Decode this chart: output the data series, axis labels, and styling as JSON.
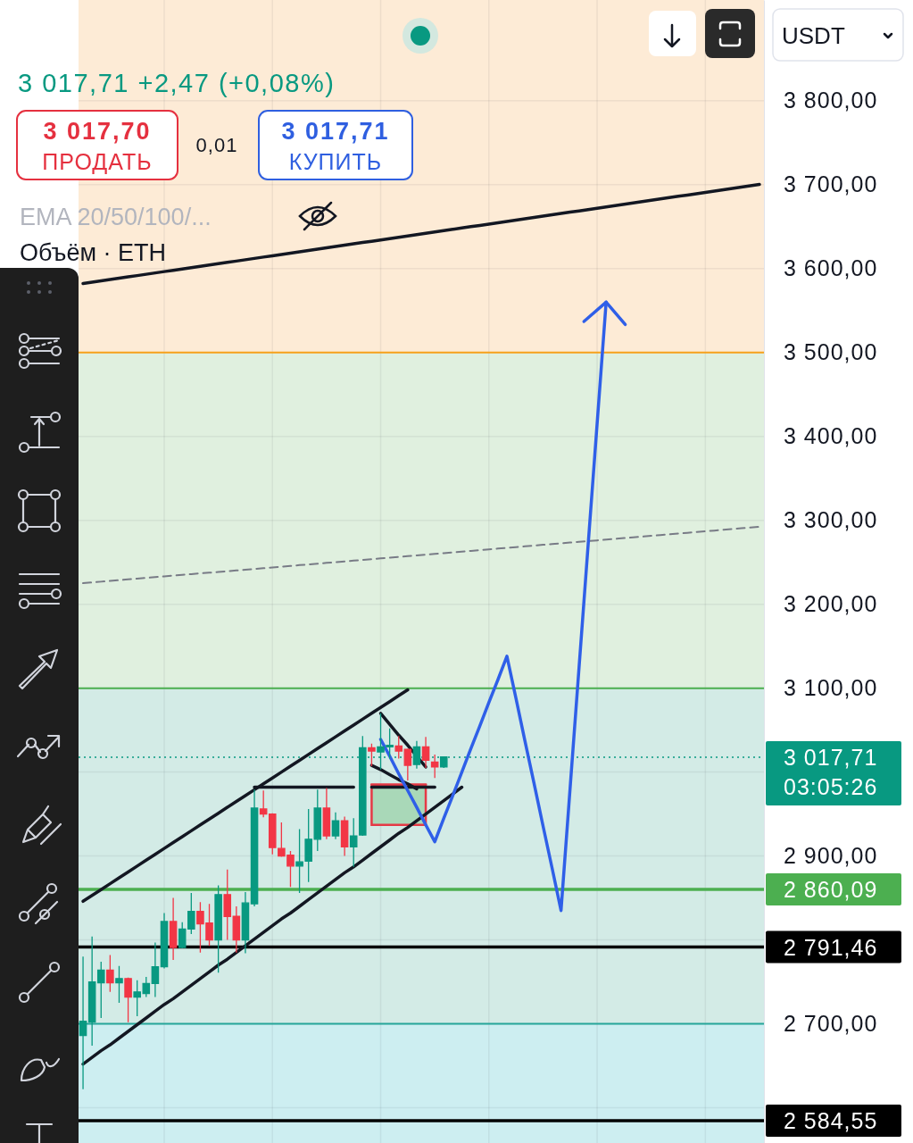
{
  "chart_data": {
    "type": "candlestick",
    "subtitle": "3 017,71 +2,47 (+0,08%)",
    "ylabel": "USDT",
    "annotations": [
      "3 017,70",
      "ПРОДАТЬ",
      "0,01",
      "3 017,71",
      "КУПИТЬ",
      "EMA 20/50/100/...",
      "Объём · ETH"
    ],
    "categories": [
      null,
      null,
      null,
      null,
      null,
      null,
      null,
      null,
      null,
      null,
      null,
      null,
      null,
      null,
      null,
      null,
      null,
      null,
      null,
      null,
      null,
      null,
      null,
      null,
      null,
      null,
      null,
      null,
      null,
      null,
      null,
      null,
      null,
      null,
      null,
      null,
      null,
      null,
      null,
      null,
      null,
      null,
      null,
      null,
      null,
      null,
      null,
      null,
      null,
      null,
      null,
      null,
      null,
      null,
      null,
      null,
      null,
      null,
      null,
      null,
      null,
      null,
      null,
      null,
      null,
      null,
      null,
      null,
      null,
      null,
      null,
      null,
      null,
      null,
      null,
      null
    ],
    "ohlc": [
      [
        2686,
        2780,
        2622,
        2703
      ],
      [
        2702,
        2804,
        2674,
        2750
      ],
      [
        2749,
        2774,
        2707,
        2764
      ],
      [
        2764,
        2782,
        2738,
        2749
      ],
      [
        2749,
        2769,
        2725,
        2754
      ],
      [
        2754,
        2755,
        2702,
        2732
      ],
      [
        2732,
        2752,
        2709,
        2738
      ],
      [
        2736,
        2756,
        2732,
        2748
      ],
      [
        2748,
        2797,
        2732,
        2768
      ],
      [
        2768,
        2832,
        2766,
        2822
      ],
      [
        2822,
        2850,
        2776,
        2791
      ],
      [
        2791,
        2821,
        2790,
        2813
      ],
      [
        2813,
        2856,
        2807,
        2834
      ],
      [
        2834,
        2845,
        2785,
        2819
      ],
      [
        2820,
        2843,
        2793,
        2800
      ],
      [
        2800,
        2865,
        2761,
        2854
      ],
      [
        2854,
        2884,
        2800,
        2828
      ],
      [
        2828,
        2840,
        2785,
        2800
      ],
      [
        2800,
        2857,
        2784,
        2844
      ],
      [
        2843,
        2979,
        2840,
        2957
      ],
      [
        2956,
        2978,
        2946,
        2950
      ],
      [
        2950,
        2951,
        2902,
        2910
      ],
      [
        2909,
        2940,
        2899,
        2900
      ],
      [
        2901,
        2906,
        2863,
        2888
      ],
      [
        2888,
        2932,
        2856,
        2893
      ],
      [
        2894,
        2956,
        2869,
        2920
      ],
      [
        2920,
        2979,
        2906,
        2957
      ],
      [
        2957,
        2981,
        2920,
        2924
      ],
      [
        2924,
        2952,
        2920,
        2942
      ],
      [
        2942,
        2947,
        2900,
        2911
      ],
      [
        2911,
        2945,
        2887,
        2924
      ],
      [
        2925,
        3043,
        2924,
        3029
      ],
      [
        3029,
        3034,
        3007,
        3025
      ],
      [
        3024,
        3070,
        3003,
        3030
      ],
      [
        3030,
        3052,
        3016,
        3032
      ],
      [
        3031,
        3043,
        3016,
        3025
      ],
      [
        3027,
        3028,
        2990,
        3008
      ],
      [
        3009,
        3037,
        3004,
        3030
      ],
      [
        3030,
        3042,
        3005,
        3014
      ],
      [
        3012,
        3021,
        2993,
        3006
      ],
      [
        3006,
        3018,
        3005,
        3018
      ],
      null,
      null,
      null,
      null,
      null,
      null,
      null,
      null,
      null,
      null,
      null,
      null,
      null,
      null,
      null,
      null,
      null,
      null,
      null,
      null,
      null,
      null,
      null,
      null,
      null,
      null,
      null,
      null,
      null,
      null,
      null,
      null,
      null,
      null,
      null
    ],
    "colors": [
      "#089981",
      "#089981",
      "#089981",
      "#f23645",
      "#089981",
      "#f23645",
      "#089981",
      "#089981",
      "#089981",
      "#089981",
      "#f23645",
      "#089981",
      "#089981",
      "#f23645",
      "#f23645",
      "#089981",
      "#f23645",
      "#f23645",
      "#089981",
      "#089981",
      "#f23645",
      "#f23645",
      "#f23645",
      "#f23645",
      "#089981",
      "#089981",
      "#089981",
      "#f23645",
      "#089981",
      "#f23645",
      "#089981",
      "#089981",
      "#f23645",
      "#089981",
      "#089981",
      "#f23645",
      "#f23645",
      "#089981",
      "#f23645",
      "#f23645",
      "#089981",
      null,
      null,
      null,
      null,
      null,
      null,
      null,
      null,
      null,
      null,
      null,
      null,
      null,
      null,
      null,
      null,
      null,
      null,
      null,
      null,
      null,
      null,
      null,
      null,
      null,
      null,
      null,
      null,
      null,
      null,
      null,
      null,
      null,
      null,
      null
    ],
    "series": [
      {
        "type": "line",
        "color": "#e53945",
        "values": [
          null,
          null,
          null,
          null,
          null,
          null,
          null,
          null,
          null,
          null,
          null,
          null,
          null,
          null,
          null,
          null,
          null,
          null,
          null,
          null,
          null,
          null,
          null,
          null,
          null,
          null,
          null,
          null,
          null,
          null,
          null,
          null,
          2985,
          2985,
          2985,
          2985,
          2985,
          2985,
          2985,
          null,
          null,
          null,
          null,
          null,
          null,
          null,
          null,
          null,
          null,
          null,
          null,
          null,
          null,
          null,
          null,
          null,
          null,
          null,
          null,
          null,
          null,
          null,
          null,
          null,
          null,
          null,
          null,
          null,
          null,
          null,
          null,
          null,
          null,
          null,
          null,
          null
        ],
        "upper": [
          null,
          null,
          null,
          null,
          null,
          null,
          null,
          null,
          null,
          null,
          null,
          null,
          null,
          null,
          null,
          null,
          null,
          null,
          null,
          null,
          null,
          null,
          null,
          null,
          null,
          null,
          null,
          null,
          null,
          null,
          null,
          null,
          2985,
          2985,
          2985,
          2985,
          2985,
          2985,
          2985,
          null,
          null,
          null,
          null,
          null,
          null,
          null,
          null,
          null,
          null,
          null,
          null,
          null,
          null,
          null,
          null,
          null,
          null,
          null,
          null,
          null,
          null,
          null,
          null,
          null,
          null,
          null,
          null,
          null,
          null,
          null,
          null,
          null,
          null,
          null,
          null,
          null
        ],
        "lower": [
          null,
          null,
          null,
          null,
          null,
          null,
          null,
          null,
          null,
          null,
          null,
          null,
          null,
          null,
          null,
          null,
          null,
          null,
          null,
          null,
          null,
          null,
          null,
          null,
          null,
          null,
          null,
          null,
          null,
          null,
          null,
          null,
          2937,
          2937,
          2937,
          2937,
          2937,
          2937,
          2937,
          null,
          null,
          null,
          null,
          null,
          null,
          null,
          null,
          null,
          null,
          null,
          null,
          null,
          null,
          null,
          null,
          null,
          null,
          null,
          null,
          null,
          null,
          null,
          null,
          null,
          null,
          null,
          null,
          null,
          null,
          null,
          null,
          null,
          null,
          null,
          null,
          null
        ],
        "colors": [
          null,
          null,
          null,
          null,
          null,
          null,
          null,
          null,
          null,
          null,
          null,
          null,
          null,
          null,
          null,
          null,
          null,
          null,
          null,
          null,
          null,
          null,
          null,
          null,
          null,
          null,
          null,
          null,
          null,
          null,
          null,
          null,
          "#a9d8b8",
          "#a9d8b8",
          "#a9d8b8",
          "#a9d8b8",
          "#a9d8b8",
          "#a9d8b8",
          "#a9d8b8",
          null,
          null,
          null,
          null,
          null,
          null,
          null,
          null,
          null,
          null,
          null,
          null,
          null,
          null,
          null,
          null,
          null,
          null,
          null,
          null,
          null,
          null,
          null,
          null,
          null,
          null,
          null,
          null,
          null,
          null,
          null,
          null,
          null,
          null,
          null,
          null,
          null
        ]
      },
      {
        "type": "line",
        "color": "#131722",
        "values": [
          3582.2,
          3583.8,
          3585.3,
          3586.9,
          3588.5,
          3590.1,
          3591.6,
          3593.2,
          3594.8,
          3596.4,
          3597.9,
          3599.5,
          3601.1,
          3602.7,
          3604.2,
          3605.8,
          3607.4,
          3608.9,
          3610.5,
          3612.1,
          3613.7,
          3615.2,
          3616.8,
          3618.4,
          3620.0,
          3621.5,
          3623.1,
          3624.7,
          3626.3,
          3627.8,
          3629.4,
          3631.0,
          3632.5,
          3634.1,
          3635.7,
          3637.3,
          3638.8,
          3640.4,
          3642.0,
          3643.6,
          3645.1,
          3646.7,
          3648.3,
          3649.9,
          3651.4,
          3653.0,
          3654.6,
          3656.2,
          3657.7,
          3659.3,
          3660.9,
          3662.4,
          3664.0,
          3665.6,
          3667.2,
          3668.7,
          3670.3,
          3671.9,
          3673.5,
          3675.0,
          3676.6,
          3678.2,
          3679.8,
          3681.3,
          3682.9,
          3684.5,
          3686.1,
          3687.6,
          3689.2,
          3690.8,
          3692.3,
          3693.9,
          3695.5,
          3697.1,
          3698.6,
          3700.2
        ]
      },
      {
        "type": "line",
        "color": "#787b86",
        "line_style": "dashed",
        "values": [
          3225.1,
          3226.0,
          3226.9,
          3227.8,
          3228.7,
          3229.6,
          3230.5,
          3231.4,
          3232.3,
          3233.2,
          3234.1,
          3235.0,
          3235.9,
          3236.8,
          3237.6,
          3238.5,
          3239.4,
          3240.3,
          3241.2,
          3242.1,
          3243.0,
          3243.9,
          3244.8,
          3245.7,
          3246.6,
          3247.5,
          3248.4,
          3249.3,
          3250.2,
          3251.1,
          3252.0,
          3252.9,
          3253.8,
          3254.7,
          3255.5,
          3256.4,
          3257.3,
          3258.2,
          3259.1,
          3260.0,
          3260.9,
          3261.8,
          3262.7,
          3263.6,
          3264.5,
          3265.4,
          3266.3,
          3267.2,
          3268.1,
          3269.0,
          3269.9,
          3270.8,
          3271.7,
          3272.6,
          3273.5,
          3274.3,
          3275.2,
          3276.1,
          3277.0,
          3277.9,
          3278.8,
          3279.7,
          3280.6,
          3281.5,
          3282.4,
          3283.3,
          3284.2,
          3285.1,
          3286.0,
          3286.9,
          3287.8,
          3288.7,
          3289.6,
          3290.5,
          3291.4,
          3292.2
        ]
      },
      {
        "type": "line",
        "color": "#131722",
        "values": [
          2846,
          2853,
          2860,
          2867,
          2874,
          2881,
          2888,
          2895,
          2902,
          2909,
          2916,
          2923,
          2930,
          2937,
          2944,
          2951,
          2958,
          2965,
          2972,
          2979,
          2986,
          2993,
          3000,
          3007,
          3014,
          3021,
          3028,
          3035,
          3042,
          3049,
          3056,
          3063,
          3070,
          3077,
          3084,
          3091,
          3098,
          null,
          null,
          null,
          null,
          null,
          null,
          null,
          null,
          null,
          null,
          null,
          null,
          null,
          null,
          null,
          null,
          null,
          null,
          null,
          null,
          null,
          null,
          null,
          null,
          null,
          null,
          null,
          null,
          null,
          null,
          null,
          null,
          null,
          null,
          null,
          null,
          null,
          null,
          null
        ]
      },
      {
        "type": "line",
        "color": "#131722",
        "values": [
          2652,
          2660,
          2668,
          2675,
          2683,
          2691,
          2699,
          2707,
          2715,
          2723,
          2730,
          2738,
          2746,
          2754,
          2762,
          2770,
          2777,
          2785,
          2793,
          2801,
          2809,
          2817,
          2825,
          2832,
          2840,
          2848,
          2856,
          2864,
          2872,
          2880,
          2887,
          2895,
          2903,
          2911,
          2919,
          2927,
          2934,
          2942,
          2950,
          2958,
          2966,
          2974,
          2982,
          null,
          null,
          null,
          null,
          null,
          null,
          null,
          null,
          null,
          null,
          null,
          null,
          null,
          null,
          null,
          null,
          null,
          null,
          null,
          null,
          null,
          null,
          null,
          null,
          null,
          null,
          null,
          null,
          null,
          null,
          null,
          null,
          null
        ]
      },
      {
        "type": "line",
        "color": "#131722",
        "values": [
          null,
          null,
          null,
          null,
          null,
          null,
          null,
          null,
          null,
          null,
          null,
          null,
          null,
          null,
          null,
          null,
          null,
          null,
          null,
          2982,
          2982,
          2982,
          2982,
          2982,
          2982,
          2982,
          2982,
          2982,
          2982,
          2982,
          2982,
          null,
          2982,
          2982,
          2982,
          2982,
          2982,
          2982,
          2982,
          2982,
          null,
          null,
          null,
          null,
          null,
          null,
          null,
          null,
          null,
          null,
          null,
          null,
          null,
          null,
          null,
          null,
          null,
          null,
          null,
          null,
          null,
          null,
          null,
          null,
          null,
          null,
          null,
          null,
          null,
          null,
          null,
          null,
          null,
          null,
          null,
          null
        ]
      },
      {
        "type": "line",
        "color": "#131722",
        "values": [
          null,
          null,
          null,
          null,
          null,
          null,
          null,
          null,
          null,
          null,
          null,
          null,
          null,
          null,
          null,
          null,
          null,
          null,
          null,
          null,
          null,
          null,
          null,
          null,
          null,
          null,
          null,
          null,
          null,
          null,
          null,
          null,
          null,
          3070,
          3057,
          3044,
          3032,
          3019,
          3006,
          null,
          null,
          null,
          null,
          null,
          null,
          null,
          null,
          null,
          null,
          null,
          null,
          null,
          null,
          null,
          null,
          null,
          null,
          null,
          null,
          null,
          null,
          null,
          null,
          null,
          null,
          null,
          null,
          null,
          null,
          null,
          null,
          null,
          null,
          null,
          null,
          null
        ]
      },
      {
        "type": "line",
        "color": "#131722",
        "values": [
          null,
          null,
          null,
          null,
          null,
          null,
          null,
          null,
          null,
          null,
          null,
          null,
          null,
          null,
          null,
          null,
          null,
          null,
          null,
          null,
          null,
          null,
          null,
          null,
          null,
          null,
          null,
          null,
          null,
          null,
          null,
          null,
          3008,
          3003,
          2997,
          2991,
          2986,
          2980,
          null,
          null,
          null,
          null,
          null,
          null,
          null,
          null,
          null,
          null,
          null,
          null,
          null,
          null,
          null,
          null,
          null,
          null,
          null,
          null,
          null,
          null,
          null,
          null,
          null,
          null,
          null,
          null,
          null,
          null,
          null,
          null,
          null,
          null,
          null,
          null,
          null,
          null
        ]
      },
      {
        "type": "line",
        "color": "#2f5fe8",
        "values": [
          null,
          null,
          null,
          null,
          null,
          null,
          null,
          null,
          null,
          null,
          null,
          null,
          null,
          null,
          null,
          null,
          null,
          null,
          null,
          null,
          null,
          null,
          null,
          null,
          null,
          null,
          null,
          null,
          null,
          null,
          null,
          null,
          null,
          3039,
          3019,
          2998,
          2978,
          2958,
          2937,
          2917,
          2945,
          2972,
          3000,
          3028,
          3055,
          3083,
          3110,
          3138,
          3088,
          3037,
          2987,
          2936,
          2886,
          2835,
          2980,
          3125,
          3270,
          3415,
          3560,
          null,
          null,
          null,
          null,
          null,
          null,
          null,
          null,
          null,
          null,
          null,
          null,
          null,
          null,
          null,
          null,
          null
        ]
      }
    ],
    "ylim": [
      2558,
      3920
    ],
    "yticks": [
      {
        "value": 2600,
        "label": null
      },
      {
        "value": 2700,
        "label": "2 700,00"
      },
      {
        "value": 2800,
        "label": null
      },
      {
        "value": 2900,
        "label": "2 900,00"
      },
      {
        "value": 3000,
        "label": null
      },
      {
        "value": 3100,
        "label": "3 100,00"
      },
      {
        "value": 3200,
        "label": "3 200,00"
      },
      {
        "value": 3300,
        "label": "3 300,00"
      },
      {
        "value": 3400,
        "label": "3 400,00"
      },
      {
        "value": 3500,
        "label": "3 500,00"
      },
      {
        "value": 3600,
        "label": "3 600,00"
      },
      {
        "value": 3700,
        "label": "3 700,00"
      },
      {
        "value": 3800,
        "label": "3 800,00"
      }
    ],
    "tick_labels": "y",
    "grid": true,
    "bands": [
      {
        "axis": "y",
        "from": 3500,
        "to": 3920,
        "color": "#fdebd6"
      },
      {
        "axis": "y",
        "from": 3100,
        "to": 3500,
        "color": "#e0f0df"
      },
      {
        "axis": "y",
        "from": 2700,
        "to": 3100,
        "color": "#d3ebe6"
      },
      {
        "axis": "y",
        "from": 2558,
        "to": 2700,
        "color": "#cdeef1"
      }
    ],
    "ref_lines": [
      {
        "axis": "y",
        "value": 3500,
        "color": "#f7a21b"
      },
      {
        "axis": "y",
        "value": 3100,
        "color": "#4caf50"
      },
      {
        "axis": "y",
        "value": 3017.71,
        "label": "3 017,71\n03:05:26",
        "color": "#089981",
        "line_style": "dotted"
      },
      {
        "axis": "y",
        "value": 2860.09,
        "label": "2 860,09",
        "color": "#4caf50"
      },
      {
        "axis": "y",
        "value": 2791.46,
        "label": "2 791,46",
        "color": "#000000"
      },
      {
        "axis": "y",
        "value": 2700,
        "color": "#26a69a"
      },
      {
        "axis": "y",
        "value": 2584.55,
        "label": "2 584,55",
        "color": "#000000"
      }
    ]
  }
}
